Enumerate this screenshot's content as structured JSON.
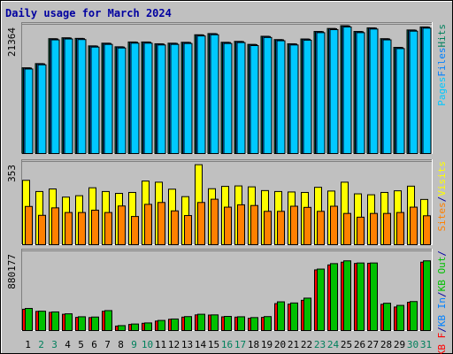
{
  "chart_data": {
    "type": "bar",
    "title": "Daily usage for March 2024",
    "categories": [
      "1",
      "2",
      "3",
      "4",
      "5",
      "6",
      "7",
      "8",
      "9",
      "10",
      "11",
      "12",
      "13",
      "14",
      "15",
      "16",
      "17",
      "18",
      "19",
      "20",
      "21",
      "22",
      "23",
      "24",
      "25",
      "26",
      "27",
      "28",
      "29",
      "30",
      "31"
    ],
    "weekend_categories": [
      "2",
      "3",
      "9",
      "10",
      "16",
      "17",
      "23",
      "24",
      "30",
      "31"
    ],
    "panels": [
      {
        "max_label": "21364",
        "ymax": 21364,
        "legend": [
          {
            "text": "Pages",
            "color": "#00c8ff"
          },
          {
            "text": "Files",
            "color": "#0080ff"
          },
          {
            "text": "Hits",
            "color": "#00805c"
          }
        ],
        "series": [
          {
            "name": "Hits",
            "color": "#00805c",
            "values": [
              14350,
              15050,
              19200,
              19350,
              19250,
              18000,
              18450,
              17850,
              18650,
              18650,
              18350,
              18450,
              18600,
              19850,
              20050,
              18600,
              18750,
              18250,
              19600,
              19050,
              18350,
              19150,
              20400,
              20900,
              21364,
              20400,
              21000,
              19200,
              17750,
              20650,
              21150
            ]
          },
          {
            "name": "Files",
            "color": "#0080ff",
            "values": [
              14300,
              15000,
              19150,
              19300,
              19200,
              17950,
              18400,
              17800,
              18600,
              18600,
              18300,
              18400,
              18550,
              19800,
              20000,
              18550,
              18700,
              18200,
              19550,
              19000,
              18300,
              19100,
              20350,
              20850,
              21300,
              20350,
              20950,
              19150,
              17700,
              20600,
              21100
            ]
          },
          {
            "name": "Pages",
            "color": "#00c8ff",
            "values": [
              14150,
              14850,
              19000,
              19150,
              19050,
              17800,
              18250,
              17650,
              18450,
              18450,
              18150,
              18250,
              18400,
              19650,
              19850,
              18400,
              18550,
              18050,
              19400,
              18850,
              18150,
              18950,
              20200,
              20700,
              21150,
              20200,
              20800,
              19000,
              17550,
              20450,
              20950
            ]
          }
        ]
      },
      {
        "max_label": "353",
        "ymax": 353,
        "legend": [
          {
            "text": "Sites",
            "color": "#ff8000"
          },
          {
            "text": "/",
            "color": "#0000a0"
          },
          {
            "text": "Visits",
            "color": "#ffff00"
          }
        ],
        "series": [
          {
            "name": "Visits",
            "color": "#ffff00",
            "values": [
              278,
              230,
              241,
              206,
              212,
              246,
              230,
              222,
              226,
              275,
              270,
              240,
              208,
              345,
              242,
              252,
              254,
              250,
              234,
              230,
              228,
              226,
              248,
              232,
              270,
              220,
              216,
              226,
              233,
              253,
              196
            ]
          },
          {
            "name": "Sites",
            "color": "#ff8000",
            "values": [
              166,
              128,
              160,
              140,
              140,
              150,
              140,
              168,
              123,
              175,
              183,
              147,
              127,
              183,
              197,
              163,
              173,
              170,
              145,
              145,
              167,
              162,
              145,
              167,
              136,
              120,
              136,
              136,
              140,
              163,
              126
            ]
          }
        ]
      },
      {
        "max_label": "880177",
        "ymax": 880177,
        "legend": [
          {
            "text": "KB F",
            "color": "#ff0000"
          },
          {
            "text": "/",
            "color": "#0000a0"
          },
          {
            "text": "KB In",
            "color": "#0080ff"
          },
          {
            "text": "/",
            "color": "#0000a0"
          },
          {
            "text": "KB Out",
            "color": "#00c000"
          },
          {
            "text": "/",
            "color": "#0000a0"
          }
        ],
        "series": [
          {
            "name": "KB F",
            "color": "#ff0000",
            "values": [
              243000,
              219000,
              208000,
              187000,
              152000,
              150000,
              220000,
              55000,
              73000,
              86000,
              111000,
              131000,
              155000,
              180000,
              178000,
              158000,
              155000,
              142000,
              152000,
              306000,
              300000,
              343000,
              683000,
              738000,
              769000,
              755000,
              757000,
              298000,
              268000,
              321000,
              769000
            ]
          },
          {
            "name": "KB Out",
            "color": "#00c000",
            "values": [
              252000,
              221000,
              213000,
              192000,
              159000,
              156000,
              228000,
              60000,
              78000,
              90000,
              118000,
              134000,
              161000,
              187000,
              180000,
              163000,
              159000,
              150000,
              161000,
              326000,
              313000,
              367000,
              692000,
              753000,
              784000,
              760000,
              760000,
              310000,
              286000,
              329000,
              784000
            ]
          }
        ]
      }
    ]
  }
}
